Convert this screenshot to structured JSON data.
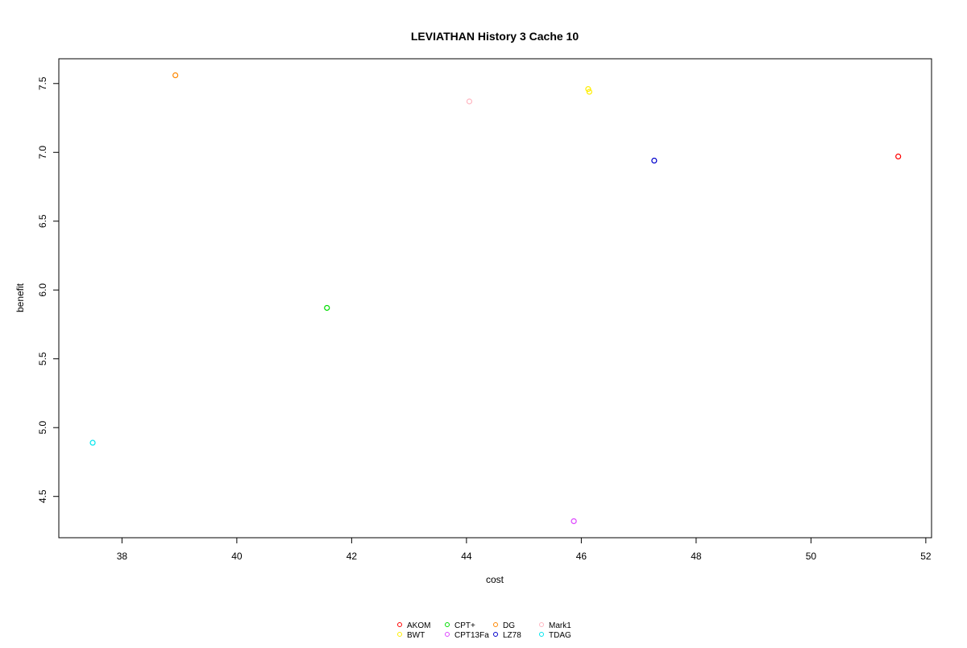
{
  "chart_data": {
    "type": "scatter",
    "title": "LEVIATHAN  History  3  Cache  10",
    "xlabel": "cost",
    "ylabel": "benefit",
    "xlim": [
      36.9,
      52.1
    ],
    "ylim": [
      4.2,
      7.68
    ],
    "xticks": [
      38,
      40,
      42,
      44,
      46,
      48,
      50,
      52
    ],
    "yticks": [
      4.5,
      5.0,
      5.5,
      6.0,
      6.5,
      7.0,
      7.5
    ],
    "xtick_labels": [
      "38",
      "40",
      "42",
      "44",
      "46",
      "48",
      "50",
      "52"
    ],
    "ytick_labels": [
      "4.5",
      "5.0",
      "5.5",
      "6.0",
      "6.5",
      "7.0",
      "7.5"
    ],
    "grid": false,
    "legend_position": "bottom-center",
    "series": [
      {
        "name": "AKOM",
        "color": "#ff0000",
        "points": [
          {
            "x": 51.52,
            "y": 6.97
          }
        ]
      },
      {
        "name": "BWT",
        "color": "#ffee00",
        "points": [
          {
            "x": 46.12,
            "y": 7.46
          },
          {
            "x": 46.14,
            "y": 7.44
          }
        ]
      },
      {
        "name": "CPT+",
        "color": "#00dd00",
        "points": [
          {
            "x": 41.57,
            "y": 5.87
          }
        ]
      },
      {
        "name": "CPT13Fa",
        "color": "#dd44ff",
        "points": [
          {
            "x": 45.87,
            "y": 4.32
          }
        ]
      },
      {
        "name": "DG",
        "color": "#ff8800",
        "points": [
          {
            "x": 38.93,
            "y": 7.56
          }
        ]
      },
      {
        "name": "LZ78",
        "color": "#0000cc",
        "points": [
          {
            "x": 47.27,
            "y": 6.94
          }
        ]
      },
      {
        "name": "Mark1",
        "color": "#ffb6c1",
        "points": [
          {
            "x": 44.05,
            "y": 7.37
          }
        ]
      },
      {
        "name": "TDAG",
        "color": "#00e5ee",
        "points": [
          {
            "x": 37.49,
            "y": 4.89
          }
        ]
      }
    ]
  }
}
